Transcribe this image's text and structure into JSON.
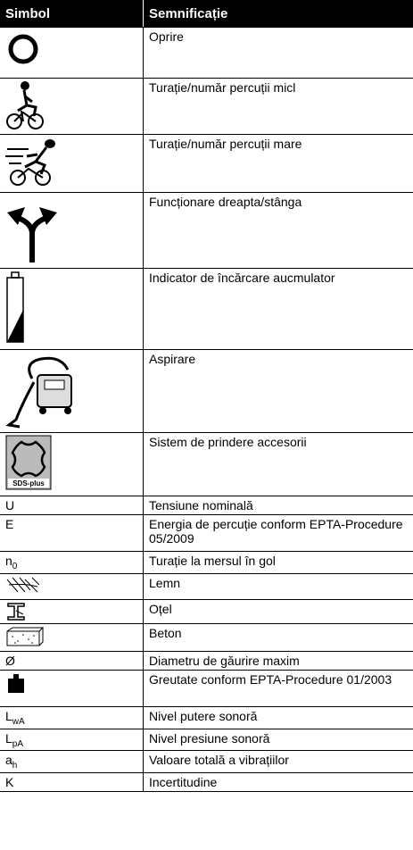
{
  "header": {
    "symbol": "Simbol",
    "meaning": "Semnificație"
  },
  "rows": [
    {
      "meaning": "Oprire"
    },
    {
      "meaning": "Turație/număr percuții micl"
    },
    {
      "meaning": "Turație/număr percuții mare"
    },
    {
      "meaning": "Funcționare dreapta/stânga"
    },
    {
      "meaning": "Indicator de încărcare aucmulator"
    },
    {
      "meaning": "Aspirare"
    },
    {
      "meaning": "Sistem de prindere accesorii",
      "icon_label": "SDS-plus"
    },
    {
      "symbol": "U",
      "meaning": "Tensiune nominală"
    },
    {
      "symbol": "E",
      "meaning": "Energia de percuție conform EPTA-Procedure 05/2009"
    },
    {
      "symbol": "n",
      "sub": "0",
      "meaning": "Turație la mersul în gol"
    },
    {
      "meaning": "Lemn"
    },
    {
      "meaning": "Oțel"
    },
    {
      "meaning": "Beton"
    },
    {
      "symbol": "Ø",
      "meaning": "Diametru de găurire maxim"
    },
    {
      "meaning": "Greutate conform EPTA-Procedure 01/2003"
    },
    {
      "symbol": "L",
      "sub": "wA",
      "meaning": "Nivel putere sonoră"
    },
    {
      "symbol": "L",
      "sub": "pA",
      "meaning": "Nivel presiune sonoră"
    },
    {
      "symbol": "a",
      "sub": "h",
      "meaning": "Valoare totală a vibrațiilor"
    },
    {
      "symbol": "K",
      "meaning": "Incertitudine"
    }
  ]
}
